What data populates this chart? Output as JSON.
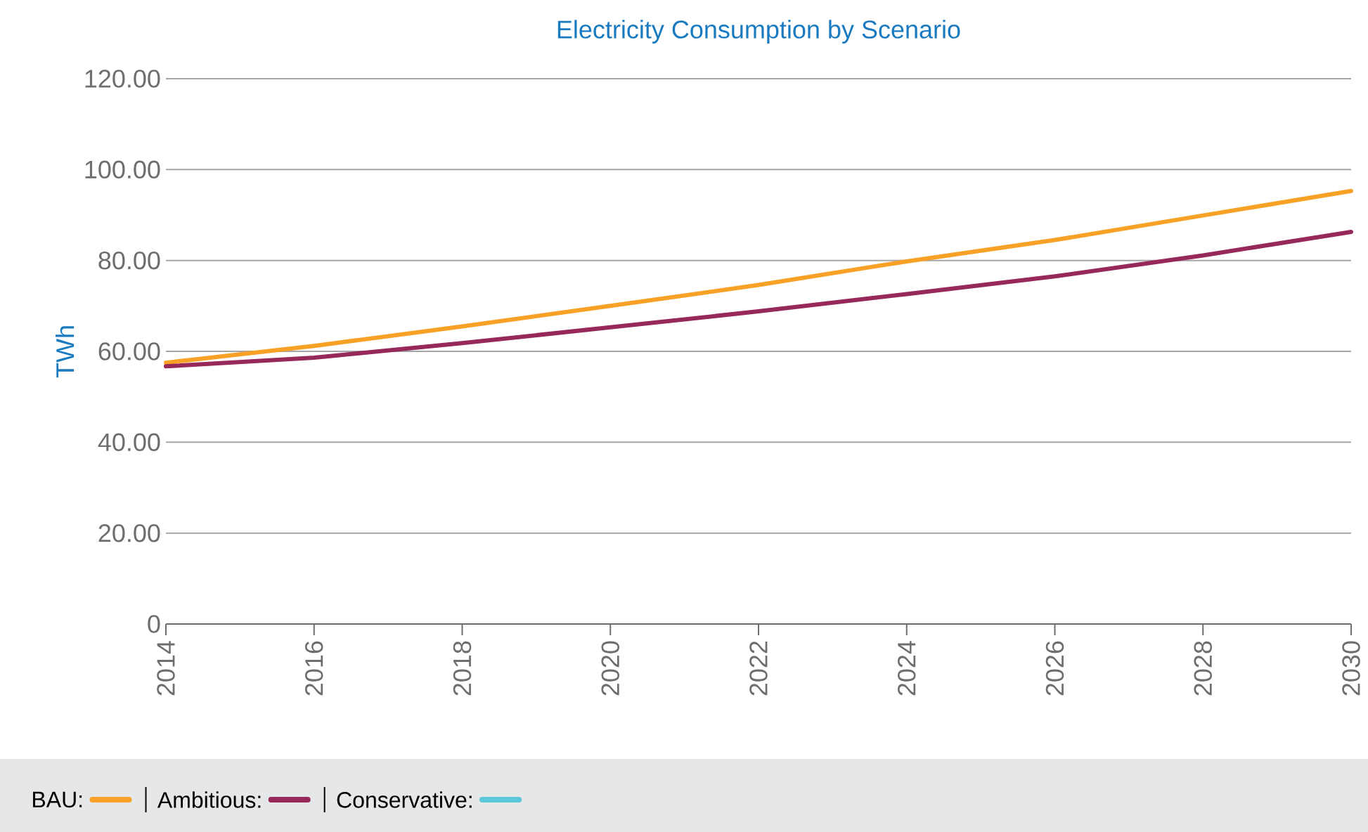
{
  "chart_data": {
    "type": "line",
    "title": "Electricity Consumption by Scenario",
    "ylabel": "TWh",
    "x": [
      2014,
      2016,
      2018,
      2020,
      2022,
      2024,
      2026,
      2028,
      2030
    ],
    "series": [
      {
        "name": "BAU:",
        "color": "#f7a126",
        "values": [
          57.5,
          61.2,
          65.5,
          70.0,
          74.6,
          79.8,
          84.5,
          89.9,
          95.3
        ]
      },
      {
        "name": "Ambitious:",
        "color": "#96285a",
        "values": [
          56.7,
          58.6,
          61.8,
          65.3,
          68.8,
          72.6,
          76.5,
          81.1,
          86.3
        ]
      },
      {
        "name": "Conservative:",
        "color": "#5bc8da",
        "values": [
          null,
          null,
          null,
          null,
          null,
          null,
          null,
          null,
          null
        ]
      }
    ],
    "xlim": [
      2014,
      2030
    ],
    "xticks": [
      2014,
      2016,
      2018,
      2020,
      2022,
      2024,
      2026,
      2028,
      2030
    ],
    "ylim": [
      0,
      120
    ],
    "yticks": [
      {
        "value": 0,
        "label": "0"
      },
      {
        "value": 20,
        "label": "20.00"
      },
      {
        "value": 40,
        "label": "40.00"
      },
      {
        "value": 60,
        "label": "60.00"
      },
      {
        "value": 80,
        "label": "80.00"
      },
      {
        "value": 100,
        "label": "100.00"
      },
      {
        "value": 120,
        "label": "120.00"
      }
    ],
    "grid": "y",
    "legend": "bottom"
  }
}
